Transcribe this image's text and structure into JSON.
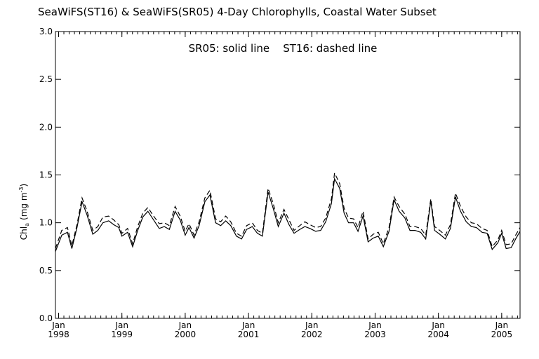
{
  "chart_data": {
    "type": "line",
    "title": "SeaWiFS(ST16) & SeaWiFS(SR05) 4-Day Chlorophylls, Coastal Water Subset",
    "legend_text": "SR05: solid line    ST16: dashed line",
    "legend_position": "top-center",
    "ylabel": "Chl",
    "ylabel_sub": "a",
    "ylabel_unit_open": "(mg m",
    "ylabel_unit_sup": "-3",
    "ylabel_unit_close": ")",
    "ylim": [
      0.0,
      3.0
    ],
    "xlim": [
      1997.95,
      2005.29
    ],
    "y_ticks": [
      "0.0",
      "0.5",
      "1.0",
      "1.5",
      "2.0",
      "2.5",
      "3.0"
    ],
    "x_ticks": [
      {
        "month": "Jan",
        "year": "1998",
        "x": 1998.0
      },
      {
        "month": "Jan",
        "year": "1999",
        "x": 1999.0
      },
      {
        "month": "Jan",
        "year": "2000",
        "x": 2000.0
      },
      {
        "month": "Jan",
        "year": "2001",
        "x": 2001.0
      },
      {
        "month": "Jan",
        "year": "2002",
        "x": 2002.0
      },
      {
        "month": "Jan",
        "year": "2003",
        "x": 2003.0
      },
      {
        "month": "Jan",
        "year": "2004",
        "x": 2004.0
      },
      {
        "month": "Jan",
        "year": "2005",
        "x": 2005.0
      }
    ],
    "grid": false,
    "series": [
      {
        "name": "SR05",
        "style": "solid",
        "points": [
          [
            1997.95,
            0.7
          ],
          [
            1998.05,
            0.87
          ],
          [
            1998.14,
            0.9
          ],
          [
            1998.21,
            0.73
          ],
          [
            1998.29,
            0.95
          ],
          [
            1998.37,
            1.22
          ],
          [
            1998.45,
            1.08
          ],
          [
            1998.54,
            0.88
          ],
          [
            1998.62,
            0.92
          ],
          [
            1998.7,
            1.0
          ],
          [
            1998.79,
            1.02
          ],
          [
            1998.87,
            0.98
          ],
          [
            1998.95,
            0.95
          ],
          [
            1999.0,
            0.86
          ],
          [
            1999.09,
            0.9
          ],
          [
            1999.17,
            0.75
          ],
          [
            1999.25,
            0.92
          ],
          [
            1999.33,
            1.06
          ],
          [
            1999.41,
            1.12
          ],
          [
            1999.5,
            1.03
          ],
          [
            1999.59,
            0.94
          ],
          [
            1999.67,
            0.96
          ],
          [
            1999.75,
            0.93
          ],
          [
            1999.84,
            1.12
          ],
          [
            1999.92,
            1.03
          ],
          [
            2000.0,
            0.87
          ],
          [
            2000.06,
            0.95
          ],
          [
            2000.14,
            0.84
          ],
          [
            2000.22,
            0.97
          ],
          [
            2000.31,
            1.22
          ],
          [
            2000.39,
            1.29
          ],
          [
            2000.48,
            1.0
          ],
          [
            2000.56,
            0.97
          ],
          [
            2000.64,
            1.02
          ],
          [
            2000.72,
            0.97
          ],
          [
            2000.81,
            0.86
          ],
          [
            2000.89,
            0.83
          ],
          [
            2000.97,
            0.93
          ],
          [
            2001.06,
            0.96
          ],
          [
            2001.14,
            0.89
          ],
          [
            2001.22,
            0.86
          ],
          [
            2001.31,
            1.32
          ],
          [
            2001.39,
            1.15
          ],
          [
            2001.47,
            0.96
          ],
          [
            2001.56,
            1.1
          ],
          [
            2001.64,
            0.98
          ],
          [
            2001.72,
            0.89
          ],
          [
            2001.81,
            0.93
          ],
          [
            2001.89,
            0.96
          ],
          [
            2001.97,
            0.94
          ],
          [
            2002.06,
            0.91
          ],
          [
            2002.14,
            0.92
          ],
          [
            2002.22,
            1.01
          ],
          [
            2002.31,
            1.2
          ],
          [
            2002.36,
            1.46
          ],
          [
            2002.44,
            1.36
          ],
          [
            2002.51,
            1.1
          ],
          [
            2002.58,
            1.0
          ],
          [
            2002.66,
            1.0
          ],
          [
            2002.73,
            0.91
          ],
          [
            2002.81,
            1.07
          ],
          [
            2002.89,
            0.8
          ],
          [
            2002.97,
            0.84
          ],
          [
            2003.05,
            0.86
          ],
          [
            2003.13,
            0.75
          ],
          [
            2003.22,
            0.91
          ],
          [
            2003.3,
            1.24
          ],
          [
            2003.38,
            1.12
          ],
          [
            2003.47,
            1.05
          ],
          [
            2003.55,
            0.92
          ],
          [
            2003.63,
            0.92
          ],
          [
            2003.72,
            0.9
          ],
          [
            2003.8,
            0.83
          ],
          [
            2003.88,
            1.23
          ],
          [
            2003.94,
            0.92
          ],
          [
            2004.02,
            0.88
          ],
          [
            2004.11,
            0.83
          ],
          [
            2004.19,
            0.94
          ],
          [
            2004.27,
            1.27
          ],
          [
            2004.35,
            1.12
          ],
          [
            2004.44,
            1.01
          ],
          [
            2004.52,
            0.96
          ],
          [
            2004.6,
            0.95
          ],
          [
            2004.69,
            0.9
          ],
          [
            2004.77,
            0.89
          ],
          [
            2004.85,
            0.72
          ],
          [
            2004.94,
            0.79
          ],
          [
            2005.0,
            0.89
          ],
          [
            2005.07,
            0.73
          ],
          [
            2005.15,
            0.74
          ],
          [
            2005.22,
            0.83
          ],
          [
            2005.29,
            0.91
          ]
        ]
      },
      {
        "name": "ST16",
        "style": "dashed",
        "points": [
          [
            1997.95,
            0.73
          ],
          [
            1998.05,
            0.92
          ],
          [
            1998.14,
            0.95
          ],
          [
            1998.21,
            0.76
          ],
          [
            1998.29,
            0.98
          ],
          [
            1998.37,
            1.26
          ],
          [
            1998.45,
            1.12
          ],
          [
            1998.54,
            0.92
          ],
          [
            1998.62,
            0.96
          ],
          [
            1998.7,
            1.06
          ],
          [
            1998.79,
            1.07
          ],
          [
            1998.87,
            1.03
          ],
          [
            1998.95,
            0.98
          ],
          [
            1999.0,
            0.89
          ],
          [
            1999.09,
            0.94
          ],
          [
            1999.17,
            0.78
          ],
          [
            1999.25,
            0.96
          ],
          [
            1999.33,
            1.1
          ],
          [
            1999.41,
            1.16
          ],
          [
            1999.5,
            1.07
          ],
          [
            1999.59,
            0.99
          ],
          [
            1999.67,
            1.0
          ],
          [
            1999.75,
            0.97
          ],
          [
            1999.84,
            1.17
          ],
          [
            1999.92,
            1.07
          ],
          [
            2000.0,
            0.91
          ],
          [
            2000.06,
            0.99
          ],
          [
            2000.14,
            0.87
          ],
          [
            2000.22,
            1.01
          ],
          [
            2000.31,
            1.26
          ],
          [
            2000.39,
            1.34
          ],
          [
            2000.48,
            1.04
          ],
          [
            2000.56,
            1.01
          ],
          [
            2000.64,
            1.07
          ],
          [
            2000.72,
            1.01
          ],
          [
            2000.81,
            0.89
          ],
          [
            2000.89,
            0.86
          ],
          [
            2000.97,
            0.97
          ],
          [
            2001.06,
            1.0
          ],
          [
            2001.14,
            0.92
          ],
          [
            2001.22,
            0.89
          ],
          [
            2001.31,
            1.36
          ],
          [
            2001.39,
            1.2
          ],
          [
            2001.47,
            1.0
          ],
          [
            2001.56,
            1.14
          ],
          [
            2001.64,
            1.03
          ],
          [
            2001.72,
            0.92
          ],
          [
            2001.81,
            0.97
          ],
          [
            2001.89,
            1.01
          ],
          [
            2001.97,
            0.98
          ],
          [
            2002.06,
            0.95
          ],
          [
            2002.14,
            0.96
          ],
          [
            2002.22,
            1.05
          ],
          [
            2002.31,
            1.25
          ],
          [
            2002.36,
            1.52
          ],
          [
            2002.44,
            1.41
          ],
          [
            2002.51,
            1.15
          ],
          [
            2002.58,
            1.05
          ],
          [
            2002.66,
            1.04
          ],
          [
            2002.73,
            0.95
          ],
          [
            2002.81,
            1.12
          ],
          [
            2002.89,
            0.83
          ],
          [
            2002.97,
            0.88
          ],
          [
            2003.05,
            0.9
          ],
          [
            2003.13,
            0.78
          ],
          [
            2003.22,
            0.95
          ],
          [
            2003.3,
            1.27
          ],
          [
            2003.38,
            1.17
          ],
          [
            2003.47,
            1.09
          ],
          [
            2003.55,
            0.96
          ],
          [
            2003.63,
            0.96
          ],
          [
            2003.72,
            0.94
          ],
          [
            2003.8,
            0.87
          ],
          [
            2003.88,
            1.25
          ],
          [
            2003.94,
            0.96
          ],
          [
            2004.02,
            0.92
          ],
          [
            2004.11,
            0.87
          ],
          [
            2004.19,
            0.98
          ],
          [
            2004.27,
            1.31
          ],
          [
            2004.35,
            1.17
          ],
          [
            2004.44,
            1.06
          ],
          [
            2004.52,
            1.0
          ],
          [
            2004.6,
            0.99
          ],
          [
            2004.69,
            0.94
          ],
          [
            2004.77,
            0.92
          ],
          [
            2004.85,
            0.75
          ],
          [
            2004.94,
            0.82
          ],
          [
            2005.0,
            0.92
          ],
          [
            2005.07,
            0.77
          ],
          [
            2005.15,
            0.78
          ],
          [
            2005.22,
            0.87
          ],
          [
            2005.29,
            0.95
          ]
        ]
      }
    ]
  }
}
